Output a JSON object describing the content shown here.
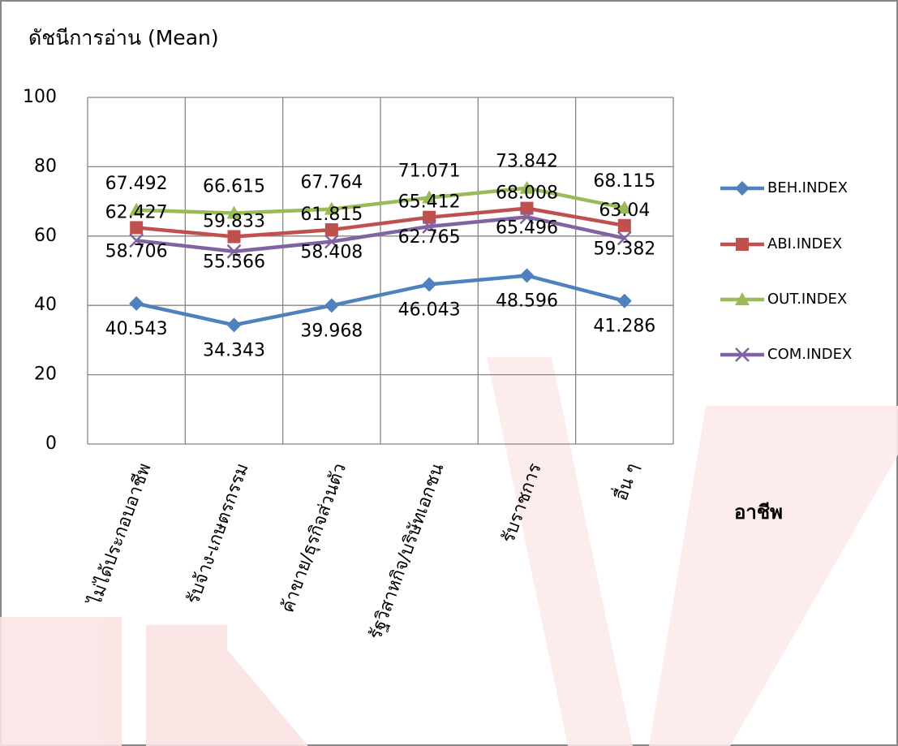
{
  "chart_data": {
    "type": "line",
    "title": "ดัชนีการอ่าน (Mean)",
    "x_label": "อาชีพ",
    "categories": [
      "ไม่ได้ประกอบอาชีพ",
      "รับจ้าง-เกษตรกรรม",
      "ค้าขาย/ธุรกิจส่วนตัว",
      "รัฐวิสาหกิจ/บริษัทเอกชน",
      "รับราชการ",
      "อื่น ๆ"
    ],
    "series": [
      {
        "name": "BEH.INDEX",
        "color": "#4f81bd",
        "marker": "diamond",
        "values": [
          40.543,
          34.343,
          39.968,
          46.043,
          48.596,
          41.286
        ]
      },
      {
        "name": "ABI.INDEX",
        "color": "#c0504d",
        "marker": "square",
        "values": [
          62.427,
          59.833,
          61.815,
          65.412,
          68.008,
          63.04
        ]
      },
      {
        "name": "OUT.INDEX",
        "color": "#9bbb59",
        "marker": "triangle",
        "values": [
          67.492,
          66.615,
          67.764,
          71.071,
          73.842,
          68.115
        ]
      },
      {
        "name": "COM.INDEX",
        "color": "#8064a2",
        "marker": "x",
        "values": [
          58.706,
          55.566,
          58.408,
          62.765,
          65.496,
          59.382
        ]
      }
    ],
    "ylim": [
      0,
      100
    ],
    "yticks": [
      0,
      20,
      40,
      60,
      80,
      100
    ],
    "grid": true,
    "legend": "right"
  }
}
